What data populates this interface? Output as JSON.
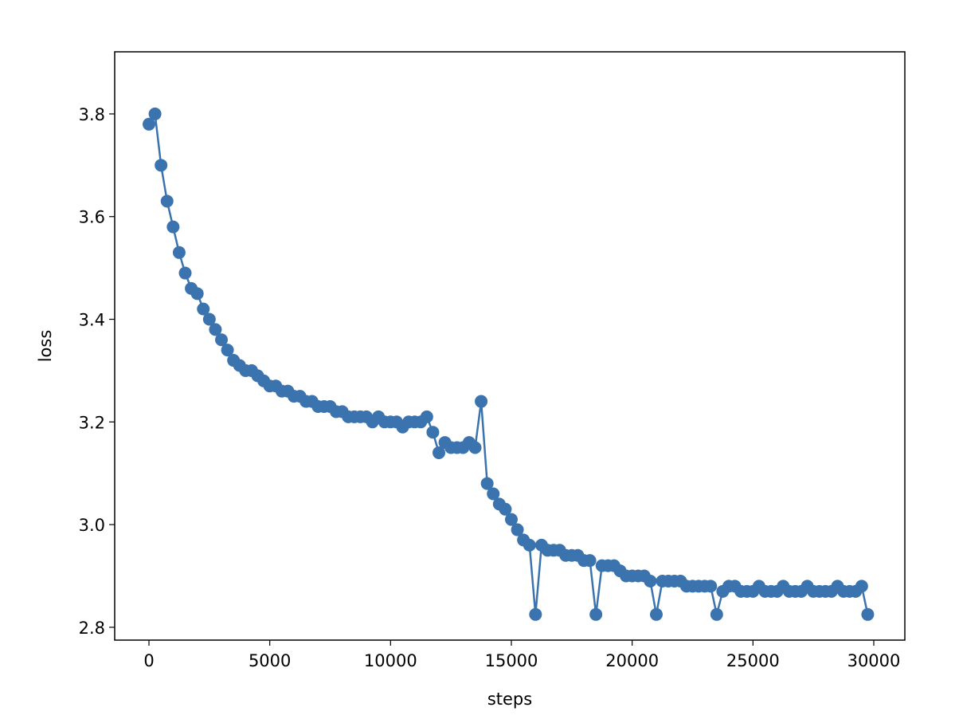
{
  "chart_data": {
    "type": "line",
    "x_label": "steps",
    "y_label": "loss",
    "x": [
      0,
      250,
      500,
      750,
      1000,
      1250,
      1500,
      1750,
      2000,
      2250,
      2500,
      2750,
      3000,
      3250,
      3500,
      3750,
      4000,
      4250,
      4500,
      4750,
      5000,
      5250,
      5500,
      5750,
      6000,
      6250,
      6500,
      6750,
      7000,
      7250,
      7500,
      7750,
      8000,
      8250,
      8500,
      8750,
      9000,
      9250,
      9500,
      9750,
      10000,
      10250,
      10500,
      10750,
      11000,
      11250,
      11500,
      11750,
      12000,
      12250,
      12500,
      12750,
      13000,
      13250,
      13500,
      13750,
      14000,
      14250,
      14500,
      14750,
      15000,
      15250,
      15500,
      15750,
      16000,
      16250,
      16500,
      16750,
      17000,
      17250,
      17500,
      17750,
      18000,
      18250,
      18500,
      18750,
      19000,
      19250,
      19500,
      19750,
      20000,
      20250,
      20500,
      20750,
      21000,
      21250,
      21500,
      21750,
      22000,
      22250,
      22500,
      22750,
      23000,
      23250,
      23500,
      23750,
      24000,
      24250,
      24500,
      24750,
      25000,
      25250,
      25500,
      25750,
      26000,
      26250,
      26500,
      26750,
      27000,
      27250,
      27500,
      27750,
      28000,
      28250,
      28500,
      28750,
      29000,
      29250,
      29500,
      29750
    ],
    "series": [
      {
        "color": "#3b73af",
        "values": [
          3.78,
          3.8,
          3.7,
          3.63,
          3.58,
          3.53,
          3.49,
          3.46,
          3.45,
          3.42,
          3.4,
          3.38,
          3.36,
          3.34,
          3.32,
          3.31,
          3.3,
          3.3,
          3.29,
          3.28,
          3.27,
          3.27,
          3.26,
          3.26,
          3.25,
          3.25,
          3.24,
          3.24,
          3.23,
          3.23,
          3.23,
          3.22,
          3.22,
          3.21,
          3.21,
          3.21,
          3.21,
          3.2,
          3.21,
          3.2,
          3.2,
          3.2,
          3.19,
          3.2,
          3.2,
          3.2,
          3.21,
          3.18,
          3.14,
          3.16,
          3.15,
          3.15,
          3.15,
          3.16,
          3.15,
          3.24,
          3.08,
          3.06,
          3.04,
          3.03,
          3.01,
          2.99,
          2.97,
          2.96,
          2.825,
          2.96,
          2.95,
          2.95,
          2.95,
          2.94,
          2.94,
          2.94,
          2.93,
          2.93,
          2.825,
          2.92,
          2.92,
          2.92,
          2.91,
          2.9,
          2.9,
          2.9,
          2.9,
          2.89,
          2.825,
          2.89,
          2.89,
          2.89,
          2.89,
          2.88,
          2.88,
          2.88,
          2.88,
          2.88,
          2.825,
          2.87,
          2.88,
          2.88,
          2.87,
          2.87,
          2.87,
          2.88,
          2.87,
          2.87,
          2.87,
          2.88,
          2.87,
          2.87,
          2.87,
          2.88,
          2.87,
          2.87,
          2.87,
          2.87,
          2.88,
          2.87,
          2.87,
          2.87,
          2.88,
          2.825
        ]
      }
    ],
    "xlim": [
      -1418,
      31286
    ],
    "ylim": [
      2.775,
      3.921
    ],
    "xticks": [
      0,
      5000,
      10000,
      15000,
      20000,
      25000,
      30000
    ],
    "yticks": [
      2.8,
      {
        "value": 3,
        "label": "3.0"
      },
      3.2,
      3.4,
      3.6,
      3.8
    ]
  }
}
